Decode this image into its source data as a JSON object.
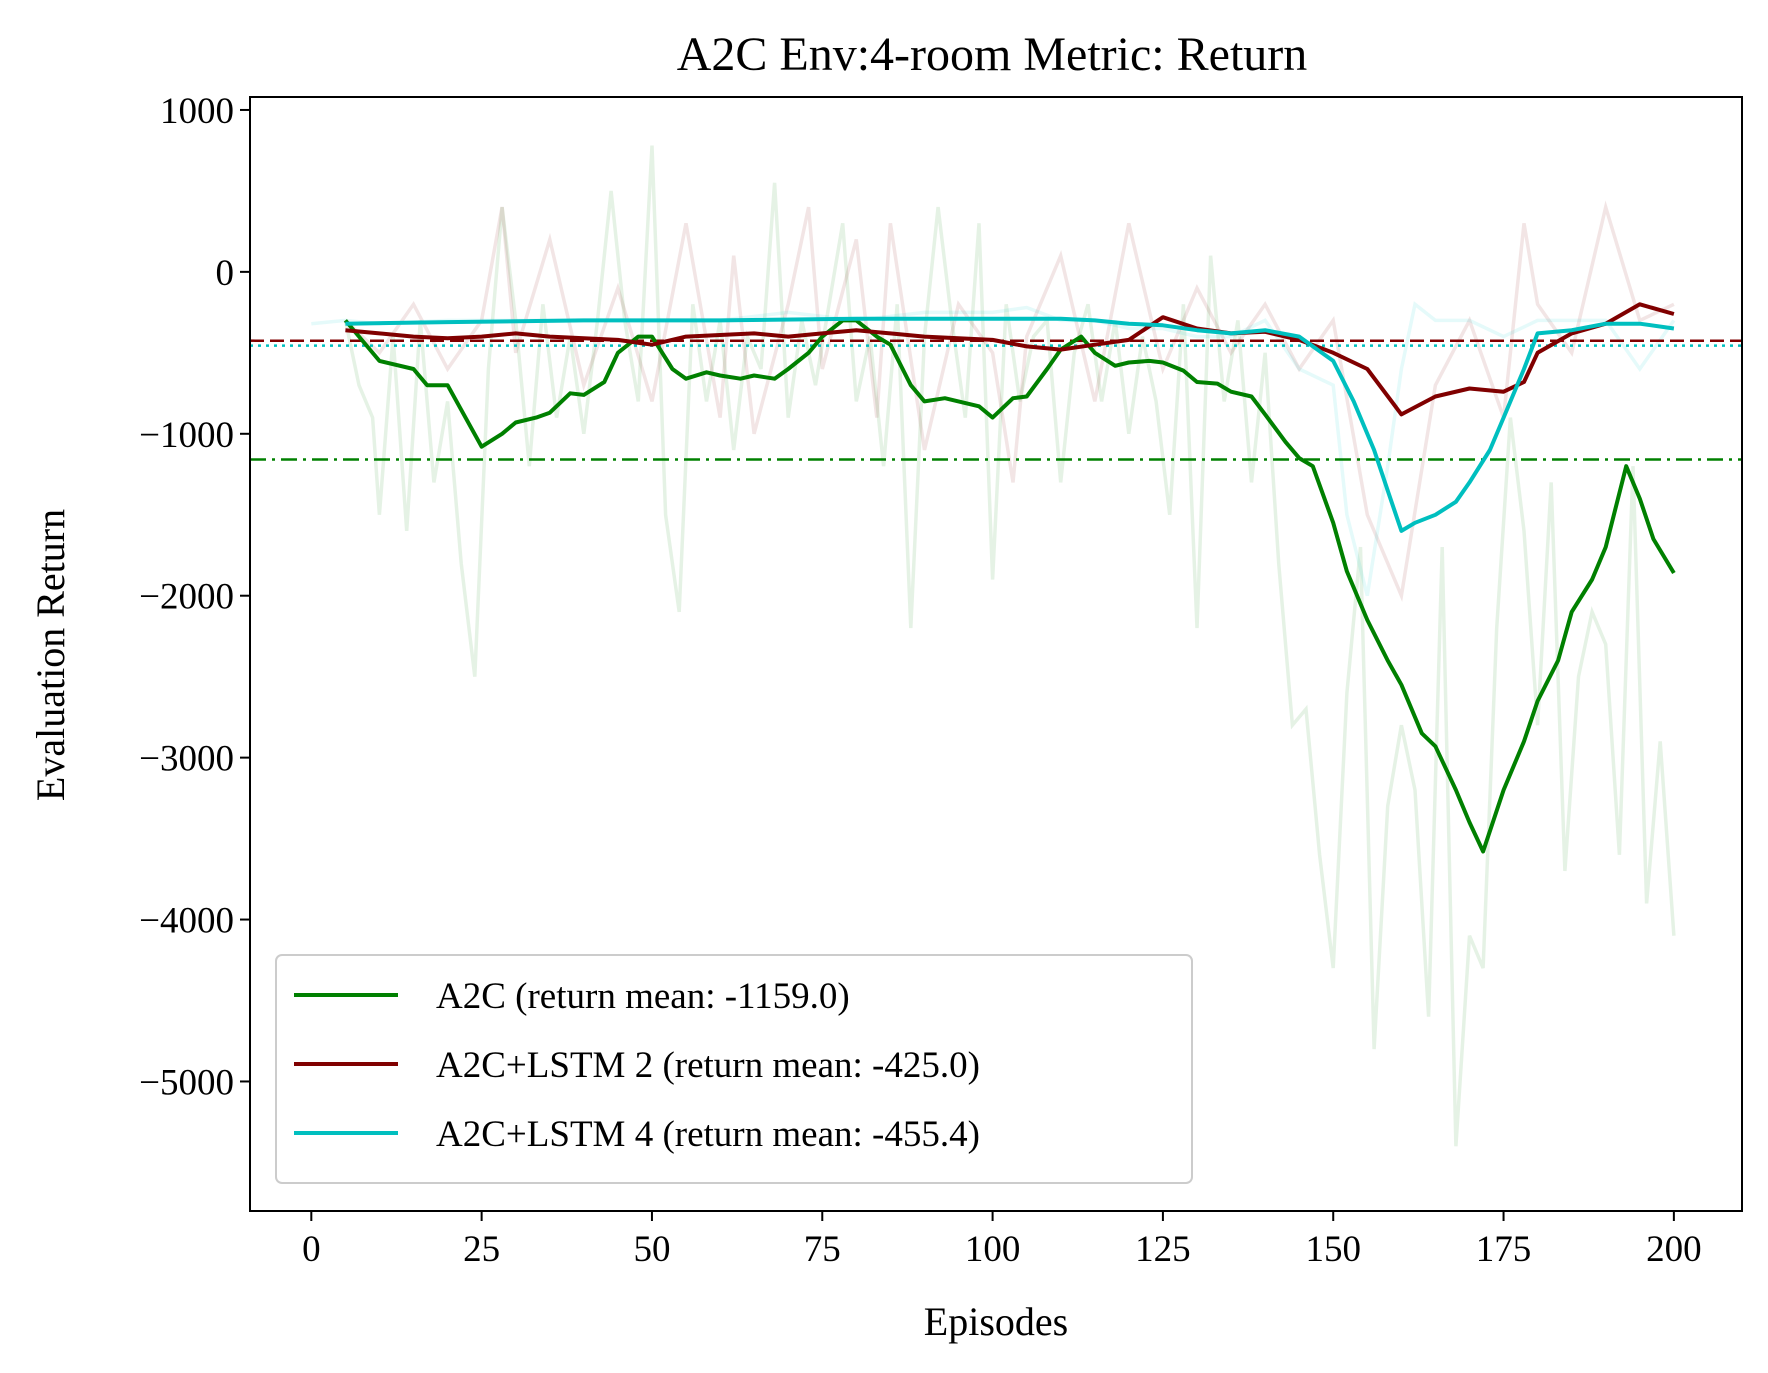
{
  "chart_data": {
    "type": "line",
    "title": "A2C Env:4-room  Metric: Return",
    "xlabel": "Episodes",
    "ylabel": "Evaluation Return",
    "xlim": [
      -9,
      210
    ],
    "ylim": [
      -5800,
      1080
    ],
    "xticks": [
      0,
      25,
      50,
      75,
      100,
      125,
      150,
      175,
      200
    ],
    "xtick_labels": [
      "0",
      "25",
      "50",
      "75",
      "100",
      "125",
      "150",
      "175",
      "200"
    ],
    "yticks": [
      1000,
      0,
      -1000,
      -2000,
      -3000,
      -4000,
      -5000
    ],
    "ytick_labels": [
      "1000",
      "0",
      "−1000",
      "−2000",
      "−3000",
      "−4000",
      "−5000"
    ],
    "grid": false,
    "legend_position": "lower-left",
    "series": [
      {
        "name": "A2C (return mean: -1159.0)",
        "color": "#008000",
        "mean": -1159.0,
        "mean_linestyle": "dashdot",
        "x": [
          5,
          10,
          15,
          17,
          20,
          25,
          28,
          30,
          33,
          35,
          38,
          40,
          43,
          45,
          48,
          50,
          53,
          55,
          58,
          60,
          63,
          65,
          68,
          70,
          73,
          75,
          78,
          80,
          83,
          85,
          88,
          90,
          93,
          95,
          98,
          100,
          103,
          105,
          108,
          110,
          113,
          115,
          118,
          120,
          123,
          125,
          128,
          130,
          133,
          135,
          138,
          140,
          143,
          145,
          147,
          150,
          152,
          155,
          158,
          160,
          163,
          165,
          168,
          170,
          172,
          175,
          178,
          180,
          183,
          185,
          188,
          190,
          193,
          195,
          197,
          200
        ],
        "y": [
          -300,
          -550,
          -600,
          -700,
          -700,
          -1080,
          -1000,
          -930,
          -900,
          -870,
          -750,
          -760,
          -680,
          -500,
          -400,
          -400,
          -600,
          -660,
          -620,
          -640,
          -660,
          -640,
          -660,
          -600,
          -500,
          -400,
          -300,
          -300,
          -400,
          -450,
          -700,
          -800,
          -780,
          -800,
          -830,
          -900,
          -780,
          -770,
          -600,
          -480,
          -400,
          -500,
          -580,
          -560,
          -550,
          -560,
          -610,
          -680,
          -690,
          -740,
          -770,
          -880,
          -1050,
          -1150,
          -1200,
          -1550,
          -1850,
          -2150,
          -2400,
          -2550,
          -2850,
          -2930,
          -3200,
          -3400,
          -3580,
          -3200,
          -2900,
          -2650,
          -2400,
          -2100,
          -1900,
          -1700,
          -1200,
          -1400,
          -1650,
          -1860
        ]
      },
      {
        "name": "A2C+LSTM 2 (return mean: -425.0)",
        "color": "#800000",
        "mean": -425.0,
        "mean_linestyle": "dashed",
        "x": [
          5,
          10,
          15,
          20,
          25,
          30,
          35,
          40,
          45,
          50,
          55,
          60,
          65,
          70,
          75,
          80,
          85,
          90,
          95,
          100,
          105,
          110,
          115,
          120,
          125,
          130,
          135,
          140,
          145,
          150,
          155,
          160,
          165,
          170,
          175,
          178,
          180,
          185,
          190,
          195,
          200
        ],
        "y": [
          -360,
          -380,
          -400,
          -410,
          -400,
          -380,
          -400,
          -410,
          -420,
          -450,
          -400,
          -390,
          -380,
          -400,
          -380,
          -360,
          -380,
          -400,
          -410,
          -420,
          -460,
          -480,
          -450,
          -420,
          -280,
          -350,
          -380,
          -370,
          -420,
          -500,
          -600,
          -880,
          -770,
          -720,
          -740,
          -680,
          -500,
          -380,
          -320,
          -200,
          -260
        ]
      },
      {
        "name": "A2C+LSTM 4 (return mean: -455.4)",
        "color": "#00BFBF",
        "mean": -455.4,
        "mean_linestyle": "dotted",
        "x": [
          5,
          20,
          40,
          60,
          80,
          100,
          110,
          115,
          120,
          125,
          130,
          135,
          140,
          145,
          150,
          153,
          156,
          158,
          160,
          162,
          165,
          168,
          170,
          173,
          175,
          178,
          180,
          185,
          190,
          195,
          200
        ],
        "y": [
          -320,
          -310,
          -300,
          -300,
          -290,
          -290,
          -290,
          -300,
          -320,
          -330,
          -360,
          -380,
          -360,
          -400,
          -550,
          -800,
          -1100,
          -1350,
          -1600,
          -1550,
          -1500,
          -1420,
          -1300,
          -1100,
          -900,
          -600,
          -380,
          -360,
          -320,
          -320,
          -350
        ]
      }
    ],
    "raw_series_note": "",
    "raw_series": [
      {
        "color": "#008000",
        "x": [
          5,
          7,
          9,
          10,
          12,
          14,
          16,
          18,
          20,
          22,
          24,
          26,
          28,
          30,
          32,
          34,
          36,
          38,
          40,
          42,
          44,
          46,
          48,
          50,
          52,
          54,
          56,
          58,
          60,
          62,
          64,
          66,
          68,
          70,
          72,
          74,
          76,
          78,
          80,
          82,
          84,
          86,
          88,
          90,
          92,
          94,
          96,
          98,
          100,
          102,
          104,
          106,
          108,
          110,
          112,
          114,
          116,
          118,
          120,
          122,
          124,
          126,
          128,
          130,
          132,
          134,
          136,
          138,
          140,
          142,
          144,
          146,
          148,
          150,
          152,
          154,
          156,
          158,
          160,
          162,
          164,
          166,
          168,
          170,
          172,
          174,
          176,
          178,
          180,
          182,
          184,
          186,
          188,
          190,
          192,
          194,
          196,
          198,
          200
        ],
        "y": [
          -300,
          -700,
          -900,
          -1500,
          -400,
          -1600,
          -300,
          -1300,
          -800,
          -1800,
          -2500,
          -600,
          400,
          -300,
          -1200,
          -200,
          -900,
          -400,
          -1000,
          -300,
          500,
          -300,
          -800,
          780,
          -1500,
          -2100,
          -200,
          -800,
          -300,
          -1100,
          -400,
          -600,
          550,
          -900,
          -300,
          -700,
          -200,
          300,
          -800,
          -400,
          -1200,
          -200,
          -2200,
          -400,
          400,
          -300,
          -900,
          300,
          -1900,
          -200,
          -800,
          -400,
          -300,
          -1300,
          -500,
          -200,
          -800,
          -300,
          -1000,
          -400,
          -800,
          -1500,
          -200,
          -2200,
          100,
          -800,
          -300,
          -1300,
          -500,
          -1800,
          -2800,
          -2700,
          -3600,
          -4300,
          -2600,
          -1700,
          -4800,
          -3300,
          -2800,
          -3200,
          -4600,
          -1700,
          -5400,
          -4100,
          -4300,
          -2200,
          -900,
          -1600,
          -2800,
          -1300,
          -3700,
          -2500,
          -2100,
          -2300,
          -3600,
          -1200,
          -3900,
          -2900,
          -4100
        ]
      },
      {
        "color": "#800000",
        "x": [
          5,
          10,
          15,
          20,
          25,
          28,
          30,
          35,
          40,
          45,
          50,
          55,
          60,
          62,
          65,
          70,
          73,
          75,
          80,
          83,
          85,
          90,
          95,
          100,
          103,
          105,
          110,
          115,
          120,
          125,
          130,
          135,
          140,
          145,
          150,
          155,
          160,
          165,
          170,
          175,
          178,
          180,
          185,
          190,
          195,
          200
        ],
        "y": [
          -300,
          -500,
          -200,
          -600,
          -300,
          400,
          -500,
          200,
          -700,
          -100,
          -800,
          300,
          -900,
          100,
          -1000,
          -200,
          400,
          -600,
          200,
          -900,
          300,
          -1100,
          -200,
          -500,
          -1300,
          -400,
          100,
          -800,
          300,
          -600,
          -100,
          -500,
          -200,
          -600,
          -300,
          -1500,
          -2000,
          -700,
          -300,
          -900,
          300,
          -200,
          -500,
          400,
          -300,
          -200
        ]
      },
      {
        "color": "#00CCCC",
        "x": [
          0,
          5,
          10,
          20,
          30,
          40,
          50,
          60,
          70,
          80,
          90,
          100,
          105,
          110,
          115,
          120,
          125,
          130,
          135,
          140,
          145,
          150,
          152,
          155,
          158,
          160,
          162,
          165,
          170,
          175,
          180,
          185,
          190,
          195,
          200
        ],
        "y": [
          -320,
          -300,
          -320,
          -300,
          -300,
          -300,
          -300,
          -300,
          -250,
          -300,
          -250,
          -250,
          -220,
          -300,
          -300,
          -350,
          -350,
          -400,
          -400,
          -300,
          -600,
          -700,
          -1500,
          -2000,
          -1200,
          -600,
          -200,
          -300,
          -300,
          -400,
          -300,
          -300,
          -300,
          -600,
          -300
        ]
      }
    ]
  }
}
